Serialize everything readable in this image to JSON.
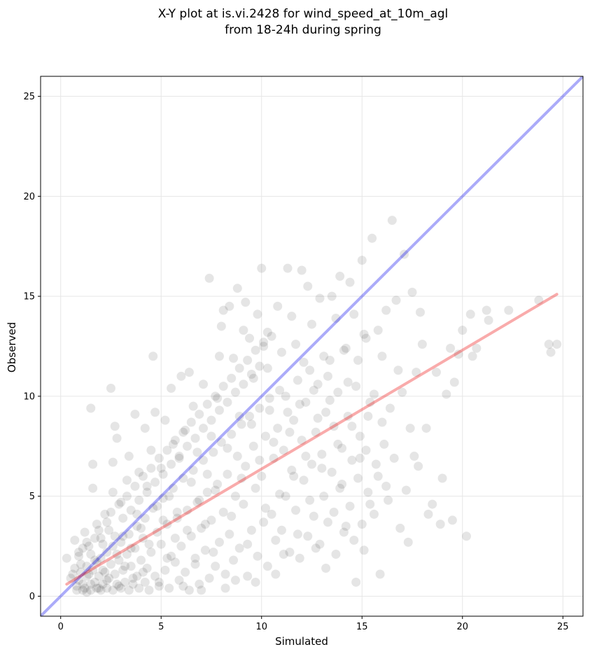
{
  "chart_data": {
    "type": "scatter",
    "title_line1": "X-Y plot at is.vi.2428 for wind_speed_at_10m_agl",
    "title_line2": "from 18-24h during spring",
    "xlabel": "Simulated",
    "ylabel": "Observed",
    "xlim": [
      -1,
      26
    ],
    "ylim": [
      -1,
      26
    ],
    "xticks": [
      0,
      5,
      10,
      15,
      20,
      25
    ],
    "yticks": [
      0,
      5,
      10,
      15,
      20,
      25
    ],
    "grid": true,
    "point_color": "#000000",
    "point_opacity": 0.1,
    "one_to_one_line": {
      "color": "#0000ee",
      "opacity": 0.33,
      "x": [
        -1,
        26
      ],
      "y": [
        -1,
        26
      ]
    },
    "fit_line": {
      "color": "#ee0000",
      "opacity": 0.33,
      "x": [
        0.3,
        24.7
      ],
      "y": [
        0.6,
        15.1
      ]
    },
    "points": [
      [
        0.3,
        1.9
      ],
      [
        0.6,
        1.1
      ],
      [
        0.7,
        2.8
      ],
      [
        0.8,
        0.5
      ],
      [
        0.9,
        2.2
      ],
      [
        1.0,
        1.6
      ],
      [
        1.1,
        0.3
      ],
      [
        1.2,
        3.2
      ],
      [
        1.3,
        1.0
      ],
      [
        1.4,
        2.5
      ],
      [
        1.5,
        0.6
      ],
      [
        1.5,
        9.4
      ],
      [
        1.6,
        6.6
      ],
      [
        1.6,
        5.4
      ],
      [
        1.7,
        1.8
      ],
      [
        1.8,
        3.6
      ],
      [
        1.9,
        0.4
      ],
      [
        2.0,
        2.9
      ],
      [
        2.1,
        1.3
      ],
      [
        2.2,
        4.1
      ],
      [
        2.3,
        0.8
      ],
      [
        2.4,
        3.3
      ],
      [
        2.5,
        10.4
      ],
      [
        2.6,
        6.7
      ],
      [
        2.6,
        5.2
      ],
      [
        2.7,
        8.5
      ],
      [
        2.8,
        7.9
      ],
      [
        2.8,
        2.1
      ],
      [
        2.9,
        0.5
      ],
      [
        3.0,
        4.7
      ],
      [
        3.1,
        3.0
      ],
      [
        3.2,
        1.5
      ],
      [
        3.3,
        5.8
      ],
      [
        3.4,
        7.0
      ],
      [
        3.5,
        2.4
      ],
      [
        3.6,
        0.9
      ],
      [
        3.7,
        9.1
      ],
      [
        3.8,
        4.1
      ],
      [
        3.9,
        6.2
      ],
      [
        4.0,
        3.4
      ],
      [
        4.1,
        1.2
      ],
      [
        4.2,
        8.4
      ],
      [
        4.3,
        5.5
      ],
      [
        4.4,
        2.6
      ],
      [
        4.5,
        7.3
      ],
      [
        4.6,
        12.0
      ],
      [
        4.7,
        9.2
      ],
      [
        4.8,
        4.5
      ],
      [
        4.9,
        0.7
      ],
      [
        5.0,
        6.4
      ],
      [
        5.1,
        3.8
      ],
      [
        5.2,
        8.8
      ],
      [
        5.3,
        1.9
      ],
      [
        5.4,
        5.0
      ],
      [
        5.5,
        10.4
      ],
      [
        5.6,
        7.6
      ],
      [
        5.7,
        2.9
      ],
      [
        5.8,
        4.2
      ],
      [
        5.9,
        6.9
      ],
      [
        6.0,
        11.0
      ],
      [
        6.1,
        0.5
      ],
      [
        6.2,
        8.3
      ],
      [
        6.3,
        3.3
      ],
      [
        6.4,
        11.2
      ],
      [
        6.5,
        5.7
      ],
      [
        6.6,
        9.5
      ],
      [
        6.7,
        1.6
      ],
      [
        6.8,
        7.2
      ],
      [
        6.9,
        4.8
      ],
      [
        7.0,
        0.3
      ],
      [
        7.1,
        10.6
      ],
      [
        7.2,
        3.6
      ],
      [
        7.3,
        6.1
      ],
      [
        7.4,
        15.9
      ],
      [
        7.5,
        8.0
      ],
      [
        7.6,
        2.2
      ],
      [
        7.7,
        5.3
      ],
      [
        7.8,
        9.9
      ],
      [
        7.9,
        12.0
      ],
      [
        8.0,
        13.5
      ],
      [
        8.1,
        14.3
      ],
      [
        8.2,
        1.1
      ],
      [
        8.3,
        7.4
      ],
      [
        8.4,
        14.5
      ],
      [
        8.5,
        4.0
      ],
      [
        8.6,
        11.9
      ],
      [
        8.7,
        0.8
      ],
      [
        8.8,
        15.4
      ],
      [
        8.9,
        9.0
      ],
      [
        9.0,
        5.9
      ],
      [
        9.1,
        13.3
      ],
      [
        9.2,
        14.7
      ],
      [
        9.3,
        2.6
      ],
      [
        9.4,
        12.9
      ],
      [
        9.5,
        8.6
      ],
      [
        9.6,
        10.9
      ],
      [
        9.7,
        0.7
      ],
      [
        9.8,
        14.1
      ],
      [
        9.9,
        6.8
      ],
      [
        10.0,
        16.4
      ],
      [
        10.1,
        12.5
      ],
      [
        10.2,
        4.4
      ],
      [
        10.3,
        11.4
      ],
      [
        10.4,
        9.3
      ],
      [
        10.5,
        13.0
      ],
      [
        10.6,
        7.7
      ],
      [
        10.7,
        1.1
      ],
      [
        10.8,
        14.5
      ],
      [
        10.9,
        5.1
      ],
      [
        11.0,
        12.2
      ],
      [
        11.1,
        2.1
      ],
      [
        11.2,
        10.0
      ],
      [
        11.3,
        16.4
      ],
      [
        11.4,
        8.2
      ],
      [
        11.5,
        14.0
      ],
      [
        11.6,
        6.0
      ],
      [
        11.7,
        12.6
      ],
      [
        11.8,
        3.1
      ],
      [
        11.9,
        9.6
      ],
      [
        12.0,
        16.3
      ],
      [
        12.1,
        11.7
      ],
      [
        12.2,
        7.0
      ],
      [
        12.3,
        15.5
      ],
      [
        12.4,
        4.8
      ],
      [
        12.5,
        13.6
      ],
      [
        12.6,
        10.3
      ],
      [
        12.7,
        2.4
      ],
      [
        12.8,
        8.9
      ],
      [
        12.9,
        14.9
      ],
      [
        13.0,
        6.4
      ],
      [
        13.1,
        12.0
      ],
      [
        13.2,
        1.4
      ],
      [
        13.3,
        11.0
      ],
      [
        13.4,
        9.8
      ],
      [
        13.5,
        15.0
      ],
      [
        13.6,
        4.2
      ],
      [
        13.7,
        13.9
      ],
      [
        13.8,
        7.6
      ],
      [
        13.9,
        16.0
      ],
      [
        14.0,
        5.6
      ],
      [
        14.1,
        12.3
      ],
      [
        14.2,
        3.5
      ],
      [
        14.3,
        10.7
      ],
      [
        14.4,
        15.7
      ],
      [
        14.5,
        8.5
      ],
      [
        14.6,
        14.1
      ],
      [
        14.7,
        0.7
      ],
      [
        14.8,
        11.8
      ],
      [
        14.9,
        6.9
      ],
      [
        15.0,
        16.8
      ],
      [
        15.1,
        2.3
      ],
      [
        15.2,
        12.9
      ],
      [
        15.3,
        9.0
      ],
      [
        15.4,
        4.6
      ],
      [
        15.5,
        17.9
      ],
      [
        15.6,
        10.1
      ],
      [
        15.7,
        6.6
      ],
      [
        15.8,
        13.3
      ],
      [
        15.9,
        1.1
      ],
      [
        16.0,
        12.0
      ],
      [
        16.1,
        7.6
      ],
      [
        16.2,
        14.3
      ],
      [
        16.3,
        4.8
      ],
      [
        16.4,
        9.4
      ],
      [
        16.5,
        18.8
      ],
      [
        16.6,
        6.9
      ],
      [
        16.7,
        14.8
      ],
      [
        16.8,
        11.3
      ],
      [
        16.9,
        3.4
      ],
      [
        17.0,
        10.2
      ],
      [
        17.1,
        17.1
      ],
      [
        17.2,
        5.3
      ],
      [
        17.3,
        2.7
      ],
      [
        17.4,
        8.4
      ],
      [
        17.5,
        15.2
      ],
      [
        17.6,
        7.0
      ],
      [
        17.7,
        11.2
      ],
      [
        17.8,
        6.5
      ],
      [
        17.9,
        14.2
      ],
      [
        18.0,
        12.6
      ],
      [
        18.2,
        8.4
      ],
      [
        18.3,
        4.1
      ],
      [
        18.5,
        4.6
      ],
      [
        18.7,
        11.2
      ],
      [
        18.9,
        3.6
      ],
      [
        19.0,
        5.9
      ],
      [
        19.2,
        10.1
      ],
      [
        19.4,
        12.4
      ],
      [
        19.5,
        3.8
      ],
      [
        19.6,
        10.7
      ],
      [
        19.8,
        12.1
      ],
      [
        20.0,
        13.3
      ],
      [
        20.2,
        3.0
      ],
      [
        20.4,
        14.1
      ],
      [
        20.5,
        12.0
      ],
      [
        20.7,
        12.4
      ],
      [
        21.2,
        14.3
      ],
      [
        21.3,
        13.8
      ],
      [
        22.3,
        14.3
      ],
      [
        23.8,
        14.8
      ],
      [
        24.3,
        12.6
      ],
      [
        24.4,
        12.2
      ],
      [
        24.7,
        12.6
      ],
      [
        0.8,
        0.3
      ],
      [
        0.9,
        0.8
      ],
      [
        1.0,
        1.2
      ],
      [
        1.1,
        0.6
      ],
      [
        1.2,
        0.4
      ],
      [
        1.3,
        1.5
      ],
      [
        1.3,
        0.2
      ],
      [
        1.4,
        1.1
      ],
      [
        1.5,
        0.3
      ],
      [
        1.6,
        1.3
      ],
      [
        1.7,
        0.7
      ],
      [
        1.8,
        0.4
      ],
      [
        1.8,
        1.7
      ],
      [
        1.9,
        1.0
      ],
      [
        2.0,
        0.3
      ],
      [
        2.0,
        1.9
      ],
      [
        2.1,
        0.6
      ],
      [
        2.2,
        1.2
      ],
      [
        2.3,
        0.4
      ],
      [
        2.3,
        2.2
      ],
      [
        2.4,
        0.9
      ],
      [
        2.5,
        1.6
      ],
      [
        2.6,
        0.3
      ],
      [
        2.6,
        2.5
      ],
      [
        2.7,
        1.1
      ],
      [
        2.8,
        0.6
      ],
      [
        2.9,
        1.8
      ],
      [
        3.0,
        0.4
      ],
      [
        3.0,
        2.7
      ],
      [
        3.1,
        1.3
      ],
      [
        3.2,
        0.7
      ],
      [
        3.3,
        2.1
      ],
      [
        3.4,
        0.3
      ],
      [
        3.4,
        3.1
      ],
      [
        3.5,
        1.5
      ],
      [
        3.6,
        0.6
      ],
      [
        3.7,
        2.4
      ],
      [
        3.8,
        1.0
      ],
      [
        3.8,
        3.5
      ],
      [
        3.9,
        0.4
      ],
      [
        4.0,
        1.8
      ],
      [
        4.1,
        2.9
      ],
      [
        4.2,
        0.7
      ],
      [
        4.2,
        3.9
      ],
      [
        4.3,
        1.4
      ],
      [
        4.4,
        0.3
      ],
      [
        4.5,
        2.2
      ],
      [
        4.6,
        4.4
      ],
      [
        4.7,
        1.0
      ],
      [
        4.8,
        3.2
      ],
      [
        4.9,
        0.5
      ],
      [
        5.0,
        2.6
      ],
      [
        5.1,
        4.9
      ],
      [
        5.2,
        1.3
      ],
      [
        5.3,
        3.6
      ],
      [
        5.4,
        0.4
      ],
      [
        5.5,
        2.0
      ],
      [
        5.6,
        5.4
      ],
      [
        5.7,
        1.7
      ],
      [
        5.8,
        3.9
      ],
      [
        5.9,
        0.8
      ],
      [
        6.0,
        2.5
      ],
      [
        6.1,
        5.9
      ],
      [
        6.2,
        1.2
      ],
      [
        6.3,
        4.3
      ],
      [
        6.4,
        0.3
      ],
      [
        6.5,
        3.0
      ],
      [
        6.6,
        6.3
      ],
      [
        6.7,
        1.9
      ],
      [
        6.8,
        4.7
      ],
      [
        6.9,
        0.6
      ],
      [
        7.0,
        3.4
      ],
      [
        7.1,
        6.8
      ],
      [
        7.2,
        2.3
      ],
      [
        7.3,
        5.2
      ],
      [
        7.4,
        0.9
      ],
      [
        7.5,
        3.8
      ],
      [
        7.6,
        7.2
      ],
      [
        7.7,
        1.5
      ],
      [
        7.8,
        5.6
      ],
      [
        7.9,
        2.7
      ],
      [
        8.0,
        7.7
      ],
      [
        8.1,
        4.2
      ],
      [
        8.2,
        0.4
      ],
      [
        8.3,
        6.1
      ],
      [
        8.4,
        3.1
      ],
      [
        8.5,
        8.1
      ],
      [
        8.6,
        1.8
      ],
      [
        8.7,
        5.0
      ],
      [
        8.8,
        7.0
      ],
      [
        8.9,
        2.4
      ],
      [
        9.0,
        8.6
      ],
      [
        9.1,
        4.6
      ],
      [
        9.2,
        6.5
      ],
      [
        9.3,
        1.0
      ],
      [
        9.4,
        9.0
      ],
      [
        9.5,
        3.3
      ],
      [
        9.6,
        7.5
      ],
      [
        9.7,
        5.4
      ],
      [
        9.8,
        2.0
      ],
      [
        9.9,
        9.4
      ],
      [
        10.0,
        6.0
      ],
      [
        10.1,
        3.7
      ],
      [
        10.2,
        8.0
      ],
      [
        10.3,
        1.5
      ],
      [
        10.4,
        9.9
      ],
      [
        10.5,
        4.1
      ],
      [
        10.6,
        6.9
      ],
      [
        10.7,
        2.8
      ],
      [
        10.8,
        8.4
      ],
      [
        10.9,
        10.3
      ],
      [
        11.0,
        3.3
      ],
      [
        11.1,
        7.3
      ],
      [
        11.2,
        5.0
      ],
      [
        11.3,
        9.2
      ],
      [
        11.4,
        2.2
      ],
      [
        11.5,
        6.3
      ],
      [
        11.6,
        8.8
      ],
      [
        11.7,
        4.3
      ],
      [
        11.8,
        10.8
      ],
      [
        11.9,
        1.9
      ],
      [
        12.0,
        7.8
      ],
      [
        12.1,
        5.8
      ],
      [
        12.2,
        9.7
      ],
      [
        12.3,
        3.0
      ],
      [
        12.4,
        11.3
      ],
      [
        12.5,
        6.6
      ],
      [
        12.6,
        4.0
      ],
      [
        12.7,
        8.2
      ],
      [
        12.8,
        10.6
      ],
      [
        12.9,
        2.6
      ],
      [
        13.0,
        7.1
      ],
      [
        13.1,
        5.0
      ],
      [
        13.2,
        9.2
      ],
      [
        13.3,
        3.7
      ],
      [
        13.4,
        11.8
      ],
      [
        13.5,
        6.2
      ],
      [
        13.6,
        8.5
      ],
      [
        13.7,
        2.1
      ],
      [
        13.8,
        10.2
      ],
      [
        13.9,
        5.4
      ],
      [
        14.0,
        7.4
      ],
      [
        14.1,
        3.2
      ],
      [
        14.2,
        12.4
      ],
      [
        14.3,
        9.0
      ],
      [
        14.4,
        4.5
      ],
      [
        14.5,
        6.8
      ],
      [
        14.6,
        2.8
      ],
      [
        14.7,
        10.5
      ],
      [
        14.8,
        5.9
      ],
      [
        14.9,
        8.0
      ],
      [
        15.0,
        3.6
      ],
      [
        15.1,
        13.1
      ],
      [
        15.2,
        7.3
      ],
      [
        15.3,
        5.2
      ],
      [
        15.4,
        9.7
      ],
      [
        15.6,
        4.1
      ],
      [
        15.8,
        6.0
      ],
      [
        16.0,
        8.7
      ],
      [
        16.2,
        5.5
      ],
      [
        0.5,
        0.9
      ],
      [
        0.7,
        1.4
      ],
      [
        0.9,
        2.0
      ],
      [
        1.1,
        2.4
      ],
      [
        1.3,
        2.7
      ],
      [
        1.5,
        2.1
      ],
      [
        1.7,
        2.9
      ],
      [
        1.9,
        3.3
      ],
      [
        2.1,
        2.6
      ],
      [
        2.3,
        3.7
      ],
      [
        2.5,
        4.2
      ],
      [
        2.7,
        3.0
      ],
      [
        2.9,
        4.6
      ],
      [
        3.1,
        3.9
      ],
      [
        3.3,
        5.0
      ],
      [
        3.5,
        4.3
      ],
      [
        3.7,
        5.5
      ],
      [
        3.9,
        4.8
      ],
      [
        4.1,
        6.0
      ],
      [
        4.3,
        5.2
      ],
      [
        4.5,
        6.4
      ],
      [
        4.7,
        5.7
      ],
      [
        4.9,
        6.9
      ],
      [
        5.1,
        6.1
      ],
      [
        5.3,
        7.3
      ],
      [
        5.5,
        6.6
      ],
      [
        5.7,
        7.8
      ],
      [
        5.9,
        7.0
      ],
      [
        6.1,
        8.2
      ],
      [
        6.3,
        7.5
      ],
      [
        6.5,
        8.7
      ],
      [
        6.7,
        7.9
      ],
      [
        6.9,
        9.1
      ],
      [
        7.1,
        8.4
      ],
      [
        7.3,
        9.6
      ],
      [
        7.5,
        8.8
      ],
      [
        7.7,
        10.0
      ],
      [
        7.9,
        9.3
      ],
      [
        8.1,
        10.5
      ],
      [
        8.3,
        9.7
      ],
      [
        8.5,
        10.9
      ],
      [
        8.7,
        10.2
      ],
      [
        8.9,
        11.4
      ],
      [
        9.1,
        10.6
      ],
      [
        9.3,
        11.8
      ],
      [
        9.5,
        11.1
      ],
      [
        9.7,
        12.3
      ],
      [
        9.9,
        11.5
      ],
      [
        10.1,
        12.7
      ],
      [
        10.3,
        13.2
      ]
    ]
  }
}
